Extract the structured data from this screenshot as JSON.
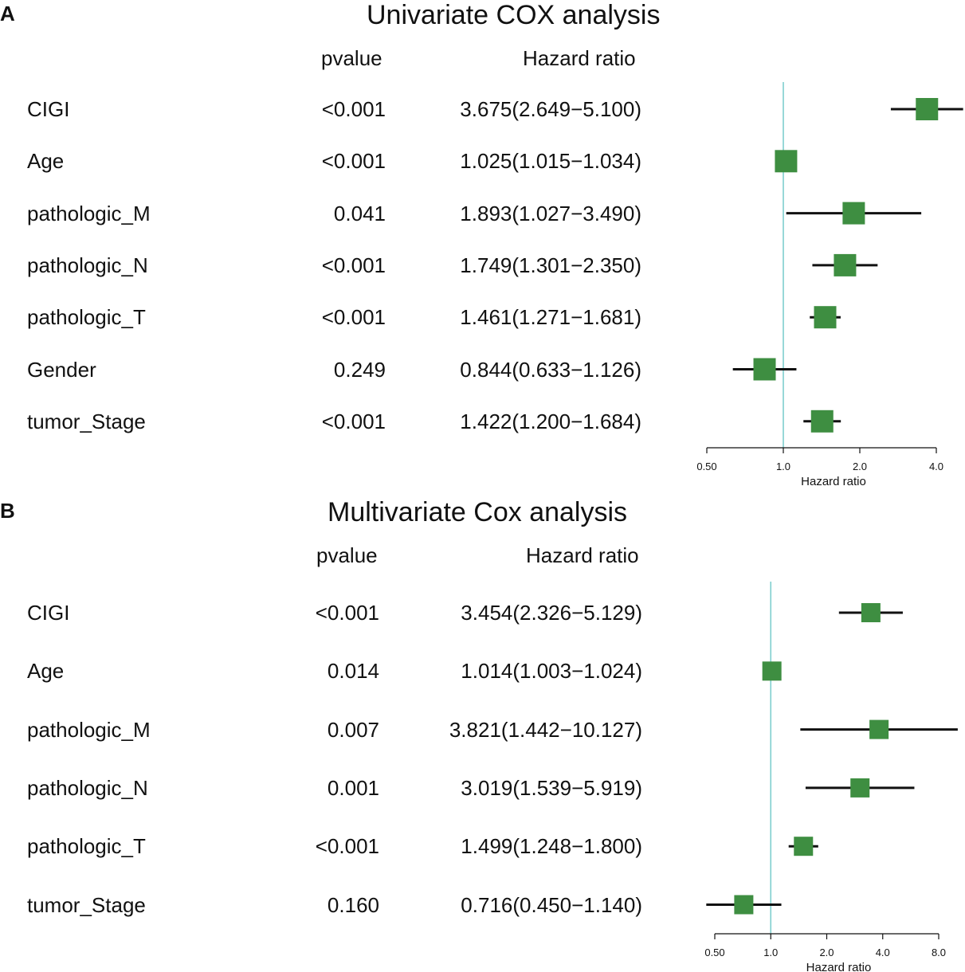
{
  "chart_data": [
    {
      "type": "forest",
      "panel": "A",
      "title": "Univariate COX analysis",
      "col_pvalue": "pvalue",
      "col_hr": "Hazard ratio",
      "xlabel": "Hazard ratio",
      "xscale": "log2",
      "xlim": [
        0.5,
        4.0
      ],
      "ticks": [
        0.5,
        1.0,
        2.0,
        4.0
      ],
      "tick_labels": [
        "0.50",
        "1.0",
        "2.0",
        "4.0"
      ],
      "reference": 1.0,
      "rows": [
        {
          "name": "CIGI",
          "pvalue": "<0.001",
          "hr_text": "3.675(2.649−5.100)",
          "hr": 3.675,
          "lo": 2.649,
          "hi": 5.1
        },
        {
          "name": "Age",
          "pvalue": "<0.001",
          "hr_text": "1.025(1.015−1.034)",
          "hr": 1.025,
          "lo": 1.015,
          "hi": 1.034
        },
        {
          "name": "pathologic_M",
          "pvalue": "0.041",
          "hr_text": "1.893(1.027−3.490)",
          "hr": 1.893,
          "lo": 1.027,
          "hi": 3.49
        },
        {
          "name": "pathologic_N",
          "pvalue": "<0.001",
          "hr_text": "1.749(1.301−2.350)",
          "hr": 1.749,
          "lo": 1.301,
          "hi": 2.35
        },
        {
          "name": "pathologic_T",
          "pvalue": "<0.001",
          "hr_text": "1.461(1.271−1.681)",
          "hr": 1.461,
          "lo": 1.271,
          "hi": 1.681
        },
        {
          "name": "Gender",
          "pvalue": "0.249",
          "hr_text": "0.844(0.633−1.126)",
          "hr": 0.844,
          "lo": 0.633,
          "hi": 1.126
        },
        {
          "name": "tumor_Stage",
          "pvalue": "<0.001",
          "hr_text": "1.422(1.200−1.684)",
          "hr": 1.422,
          "lo": 1.2,
          "hi": 1.684
        }
      ]
    },
    {
      "type": "forest",
      "panel": "B",
      "title": "Multivariate Cox analysis",
      "col_pvalue": "pvalue",
      "col_hr": "Hazard ratio",
      "xlabel": "Hazard ratio",
      "xscale": "log2",
      "xlim": [
        0.5,
        8.0
      ],
      "ticks": [
        0.5,
        1.0,
        2.0,
        4.0,
        8.0
      ],
      "tick_labels": [
        "0.50",
        "1.0",
        "2.0",
        "4.0",
        "8.0"
      ],
      "reference": 1.0,
      "rows": [
        {
          "name": "CIGI",
          "pvalue": "<0.001",
          "hr_text": "3.454(2.326−5.129)",
          "hr": 3.454,
          "lo": 2.326,
          "hi": 5.129
        },
        {
          "name": "Age",
          "pvalue": "0.014",
          "hr_text": "1.014(1.003−1.024)",
          "hr": 1.014,
          "lo": 1.003,
          "hi": 1.024
        },
        {
          "name": "pathologic_M",
          "pvalue": "0.007",
          "hr_text": "3.821(1.442−10.127)",
          "hr": 3.821,
          "lo": 1.442,
          "hi": 10.127
        },
        {
          "name": "pathologic_N",
          "pvalue": "0.001",
          "hr_text": "3.019(1.539−5.919)",
          "hr": 3.019,
          "lo": 1.539,
          "hi": 5.919
        },
        {
          "name": "pathologic_T",
          "pvalue": "<0.001",
          "hr_text": "1.499(1.248−1.800)",
          "hr": 1.499,
          "lo": 1.248,
          "hi": 1.8
        },
        {
          "name": "tumor_Stage",
          "pvalue": "0.160",
          "hr_text": "0.716(0.450−1.140)",
          "hr": 0.716,
          "lo": 0.45,
          "hi": 1.14
        }
      ]
    }
  ],
  "colors": {
    "marker": "#3e8e41",
    "reference_line": "#7fcfcf",
    "ci_line": "#111111"
  }
}
